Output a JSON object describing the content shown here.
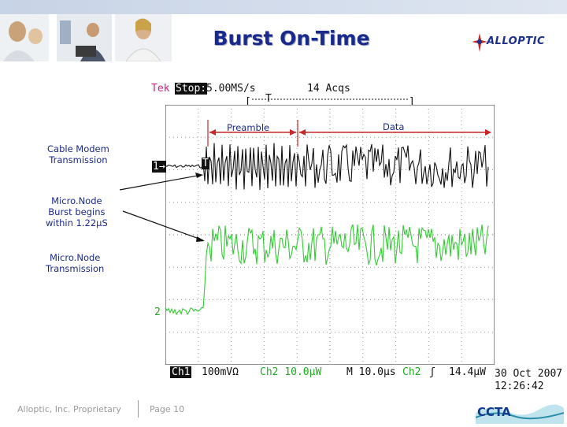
{
  "slide": {
    "title": "Burst On-Time"
  },
  "logo": {
    "name": "ALLOPTIC"
  },
  "scope": {
    "brand": "Tek",
    "state": "Stop:",
    "sample_rate": "5.00MS/s",
    "acquisitions": "14 Acqs",
    "ch1_marker": "1→",
    "ch2_marker": "2",
    "trigger_marker": "T",
    "ch1_label": "Ch1",
    "ch1_scale": "100mVΩ",
    "ch2_label": "Ch2",
    "ch2_scale": "10.0µW",
    "timebase": "M 10.0µs",
    "trigger_source": "Ch2",
    "trigger_symbol": "ʃ",
    "trigger_level": "14.4µW",
    "date": "30 Oct 2007",
    "time": "12:26:42",
    "trace_colors": {
      "ch1": "#111111",
      "ch2": "#33cc33"
    }
  },
  "annotations": {
    "preamble": "Preamble",
    "data": "Data",
    "cable_modem": [
      "Cable Modem",
      "Transmission"
    ],
    "burst_begins": [
      "Micro.Node",
      "Burst begins",
      "within 1.22µS"
    ],
    "micronode_tx": [
      "Micro.Node",
      "Transmission"
    ]
  },
  "footer": {
    "company": "Alloptic, Inc. Proprietary",
    "page": "Page 10",
    "partner_logo": "CCTA"
  }
}
